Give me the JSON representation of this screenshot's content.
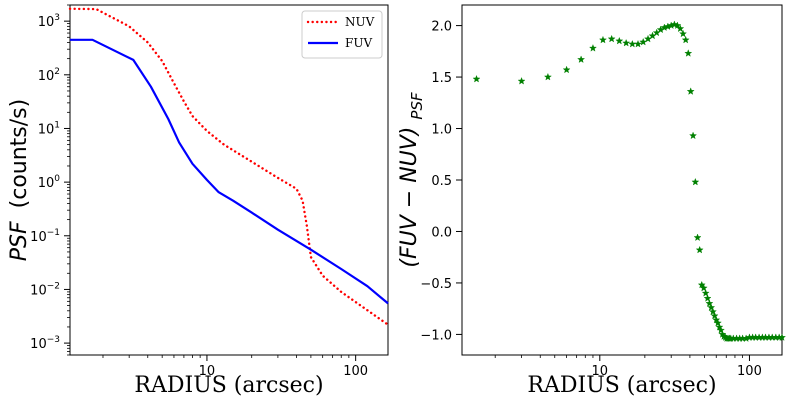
{
  "chart_data": [
    {
      "type": "line",
      "xscale": "log",
      "yscale": "log",
      "xlabel": "RADIUS (arcsec)",
      "ylabel_main": "PSF",
      "ylabel_unit": "(counts/s)",
      "xlim": [
        1.2,
        165
      ],
      "ylim": [
        0.0006,
        2000
      ],
      "xticks": [
        {
          "v": 10,
          "base": "10",
          "exp": ""
        },
        {
          "v": 100,
          "base": "100",
          "exp": ""
        }
      ],
      "yticks": [
        {
          "v": 0.001,
          "base": "10",
          "exp": "−3"
        },
        {
          "v": 0.01,
          "base": "10",
          "exp": "−2"
        },
        {
          "v": 0.1,
          "base": "10",
          "exp": "−1"
        },
        {
          "v": 1,
          "base": "10",
          "exp": "0"
        },
        {
          "v": 10,
          "base": "10",
          "exp": "1"
        },
        {
          "v": 100,
          "base": "10",
          "exp": "2"
        },
        {
          "v": 1000,
          "base": "10",
          "exp": "3"
        }
      ],
      "series": [
        {
          "name": "NUV",
          "color": "#ff0000",
          "style": "dotted",
          "x": [
            1.2,
            1.8,
            3,
            4,
            5,
            6,
            7,
            8,
            10,
            13,
            20,
            30,
            40,
            44,
            47,
            50,
            60,
            80,
            100,
            130,
            165
          ],
          "y": [
            1700,
            1680,
            800,
            400,
            180,
            70,
            32,
            17,
            9,
            5,
            2.4,
            1.2,
            0.75,
            0.45,
            0.15,
            0.04,
            0.018,
            0.009,
            0.0058,
            0.0035,
            0.0022
          ]
        },
        {
          "name": "FUV",
          "color": "#0000ff",
          "style": "solid",
          "x": [
            1.2,
            1.7,
            3.2,
            4.2,
            5.5,
            6.5,
            8,
            10,
            12,
            15,
            20,
            30,
            50,
            80,
            120,
            165
          ],
          "y": [
            450,
            450,
            190,
            60,
            15,
            5.5,
            2.2,
            1.1,
            0.65,
            0.45,
            0.27,
            0.13,
            0.055,
            0.024,
            0.0115,
            0.0055
          ]
        }
      ],
      "legend": "top-right"
    },
    {
      "type": "scatter",
      "xscale": "log",
      "yscale": "linear",
      "xlabel": "RADIUS (arcsec)",
      "ylabel_main": "(FUV − NUV)",
      "ylabel_sub": "PSF",
      "xlim": [
        1.2,
        165
      ],
      "ylim": [
        -1.2,
        2.2
      ],
      "xticks": [
        {
          "v": 10,
          "label": "10"
        },
        {
          "v": 100,
          "label": "100"
        }
      ],
      "yticks": [
        {
          "v": -1.0,
          "label": "−1.0"
        },
        {
          "v": -0.5,
          "label": "−0.5"
        },
        {
          "v": 0.0,
          "label": "0.0"
        },
        {
          "v": 0.5,
          "label": "0.5"
        },
        {
          "v": 1.0,
          "label": "1.0"
        },
        {
          "v": 1.5,
          "label": "1.5"
        },
        {
          "v": 2.0,
          "label": "2.0"
        }
      ],
      "marker": "star",
      "color": "#008000",
      "x": [
        1.5,
        3.0,
        4.5,
        6.0,
        7.5,
        9.0,
        10.5,
        12.0,
        13.5,
        15.0,
        16.5,
        18.0,
        19.5,
        21.0,
        22.5,
        24.0,
        25.5,
        27.0,
        28.5,
        30.0,
        31.5,
        33.0,
        34.5,
        36.0,
        37.5,
        39.0,
        40.5,
        42.0,
        43.5,
        45.0,
        46.5,
        48.0,
        49.5,
        51.0,
        52.5,
        54.0,
        55.5,
        57.0,
        58.5,
        60.0,
        61.5,
        63.0,
        64.5,
        66.0,
        67.5,
        69.0,
        70.5,
        72.0,
        73.5,
        75.0,
        78.0,
        82.0,
        86.0,
        90.0,
        95.0,
        100.0,
        105.0,
        110.0,
        116.0,
        122.0,
        128.0,
        135.0,
        142.0,
        150.0,
        158.0,
        165.0
      ],
      "y": [
        1.48,
        1.46,
        1.5,
        1.57,
        1.67,
        1.78,
        1.86,
        1.87,
        1.85,
        1.83,
        1.82,
        1.82,
        1.84,
        1.87,
        1.9,
        1.93,
        1.96,
        1.98,
        1.99,
        2.0,
        2.01,
        2.0,
        1.97,
        1.92,
        1.86,
        1.73,
        1.36,
        0.93,
        0.48,
        -0.06,
        -0.18,
        -0.52,
        -0.55,
        -0.6,
        -0.65,
        -0.7,
        -0.74,
        -0.78,
        -0.82,
        -0.86,
        -0.89,
        -0.93,
        -0.96,
        -1.0,
        -1.02,
        -1.03,
        -1.04,
        -1.04,
        -1.04,
        -1.04,
        -1.04,
        -1.04,
        -1.04,
        -1.04,
        -1.04,
        -1.03,
        -1.03,
        -1.03,
        -1.03,
        -1.03,
        -1.03,
        -1.03,
        -1.03,
        -1.03,
        -1.03,
        -1.03
      ]
    }
  ]
}
